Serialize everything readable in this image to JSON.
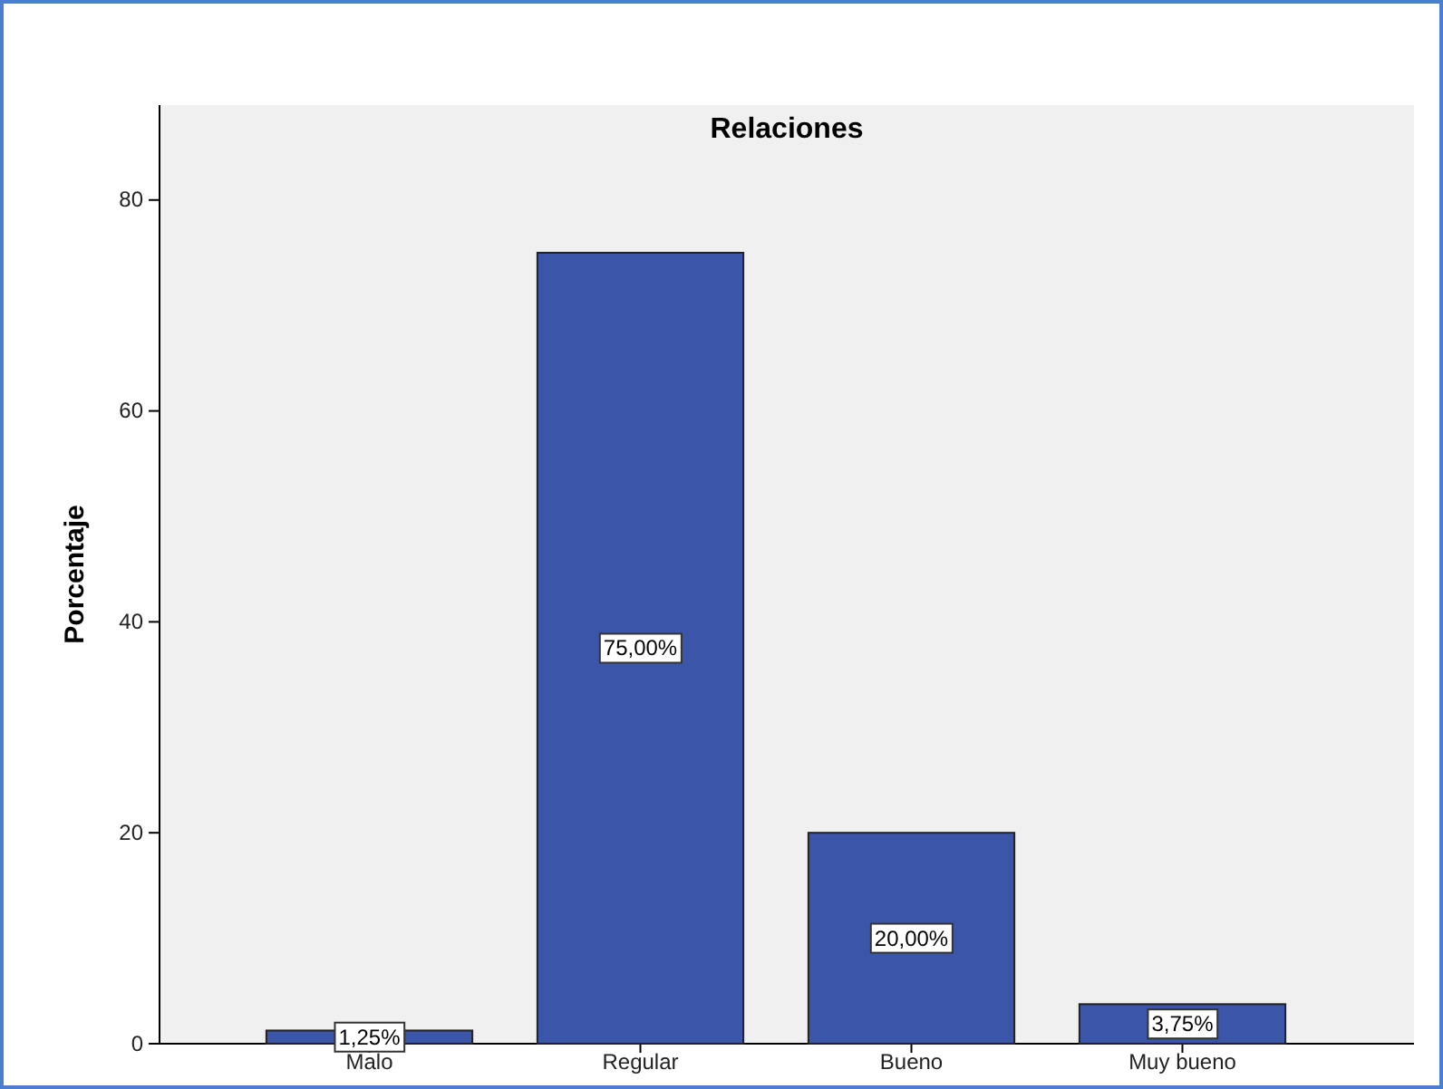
{
  "chart_data": {
    "type": "bar",
    "title": "Relaciones",
    "ylabel": "Porcentaje",
    "categories": [
      "Malo",
      "Regular",
      "Bueno",
      "Muy bueno"
    ],
    "values": [
      1.25,
      75,
      20,
      3.75
    ],
    "value_labels": [
      "1,25%",
      "75,00%",
      "20,00%",
      "3,75%"
    ],
    "color": "#3b55a8",
    "ylim": [
      0,
      89
    ],
    "yticks": [
      0,
      20,
      40,
      60,
      80
    ],
    "grid": false
  }
}
